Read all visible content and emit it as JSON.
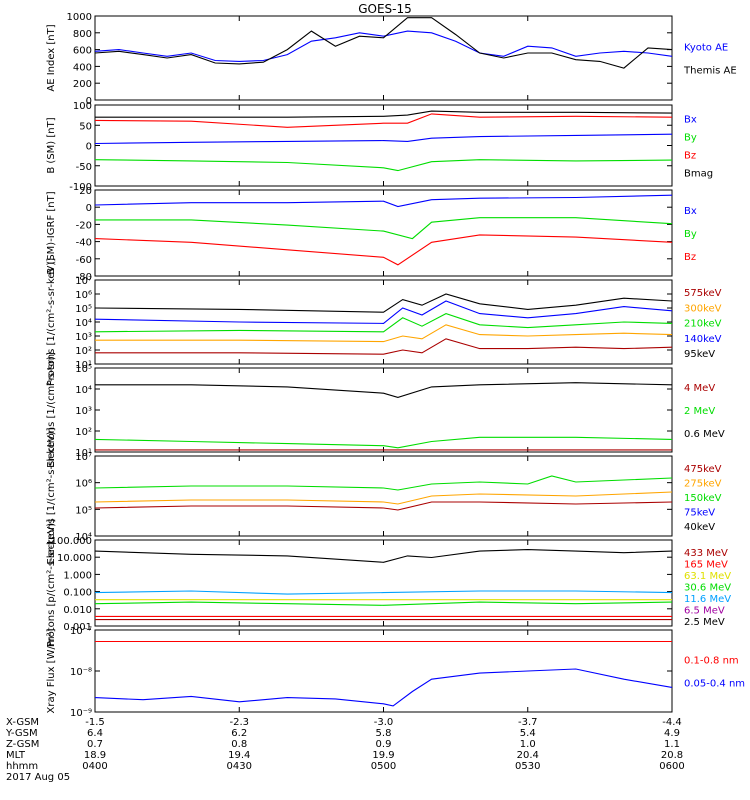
{
  "title": "GOES-15",
  "time_axis": {
    "ticks": [
      "0400",
      "0430",
      "0500",
      "0530",
      "0600"
    ],
    "date": "2017 Aug 05",
    "rows": [
      {
        "label": "X-GSM",
        "values": [
          "-1.5",
          "-2.3",
          "-3.0",
          "-3.7",
          "-4.4"
        ]
      },
      {
        "label": "Y-GSM",
        "values": [
          "6.4",
          "6.2",
          "5.8",
          "5.4",
          "4.9"
        ]
      },
      {
        "label": "Z-GSM",
        "values": [
          "0.7",
          "0.8",
          "0.9",
          "1.0",
          "1.1"
        ]
      },
      {
        "label": "MLT",
        "values": [
          "18.9",
          "19.4",
          "19.9",
          "20.4",
          "20.8"
        ]
      },
      {
        "label": "hhmm",
        "values": [
          "0400",
          "0430",
          "0500",
          "0530",
          "0600"
        ]
      }
    ]
  },
  "colors": {
    "black": "#000000",
    "blue": "#0000ff",
    "red": "#ff0000",
    "green": "#00dd00",
    "orange": "#ffa500",
    "cyan": "#00a0ff",
    "darkred": "#aa0000",
    "purple": "#a000a0",
    "yellow": "#e0e000"
  },
  "chart_data": [
    {
      "type": "line",
      "ylabel": "AE Index [nT]",
      "ylim": [
        0,
        1000
      ],
      "log": false,
      "yticks": [
        "0",
        "200",
        "400",
        "600",
        "800",
        "1000"
      ],
      "legend": [
        {
          "label": "Kyoto AE",
          "color": "blue"
        },
        {
          "label": "Themis AE",
          "color": "black"
        }
      ],
      "series": [
        {
          "name": "Kyoto AE",
          "color": "blue",
          "x": [
            0,
            5,
            10,
            15,
            20,
            25,
            30,
            35,
            40,
            45,
            50,
            55,
            60,
            65,
            70,
            75,
            80,
            85,
            90,
            95,
            100,
            105,
            110,
            115,
            120
          ],
          "y": [
            580,
            600,
            560,
            520,
            560,
            470,
            460,
            470,
            540,
            700,
            740,
            800,
            760,
            820,
            800,
            700,
            560,
            520,
            640,
            620,
            520,
            560,
            580,
            560,
            520
          ]
        },
        {
          "name": "Themis AE",
          "color": "black",
          "x": [
            0,
            5,
            10,
            15,
            20,
            25,
            30,
            35,
            40,
            45,
            50,
            55,
            60,
            65,
            70,
            75,
            80,
            85,
            90,
            95,
            100,
            105,
            110,
            115,
            120
          ],
          "y": [
            560,
            580,
            540,
            500,
            540,
            440,
            430,
            450,
            600,
            820,
            640,
            760,
            740,
            980,
            980,
            780,
            560,
            500,
            560,
            560,
            480,
            460,
            380,
            620,
            600
          ]
        }
      ]
    },
    {
      "type": "line",
      "ylabel": "B (SM) [nT]",
      "ylim": [
        -100,
        100
      ],
      "log": false,
      "yticks": [
        "-100",
        "-50",
        "0",
        "50",
        "100"
      ],
      "legend": [
        {
          "label": "Bx",
          "color": "blue"
        },
        {
          "label": "By",
          "color": "green"
        },
        {
          "label": "Bz",
          "color": "red"
        },
        {
          "label": "Bmag",
          "color": "black"
        }
      ],
      "series": [
        {
          "name": "Bx",
          "color": "blue",
          "x": [
            0,
            20,
            40,
            60,
            65,
            70,
            80,
            100,
            120
          ],
          "y": [
            5,
            8,
            10,
            12,
            10,
            18,
            22,
            25,
            28
          ]
        },
        {
          "name": "By",
          "color": "green",
          "x": [
            0,
            20,
            40,
            60,
            63,
            70,
            80,
            100,
            120
          ],
          "y": [
            -35,
            -38,
            -42,
            -55,
            -62,
            -40,
            -35,
            -38,
            -36
          ]
        },
        {
          "name": "Bz",
          "color": "red",
          "x": [
            0,
            20,
            40,
            60,
            65,
            70,
            80,
            100,
            120
          ],
          "y": [
            62,
            60,
            45,
            55,
            55,
            78,
            70,
            72,
            70
          ]
        },
        {
          "name": "Bmag",
          "color": "black",
          "x": [
            0,
            20,
            40,
            60,
            65,
            70,
            80,
            100,
            120
          ],
          "y": [
            70,
            70,
            70,
            72,
            75,
            85,
            82,
            82,
            80
          ]
        }
      ]
    },
    {
      "type": "line",
      "ylabel": "B (SM)-IGRF [nT]",
      "ylim": [
        -90,
        25
      ],
      "log": false,
      "yticks": [
        "-80",
        "-60",
        "-40",
        "-20",
        "0",
        "20"
      ],
      "legend": [
        {
          "label": "Bx",
          "color": "blue"
        },
        {
          "label": "By",
          "color": "green"
        },
        {
          "label": "Bz",
          "color": "red"
        }
      ],
      "series": [
        {
          "name": "Bx",
          "color": "blue",
          "x": [
            0,
            20,
            40,
            60,
            63,
            70,
            80,
            100,
            120
          ],
          "y": [
            5,
            8,
            8,
            10,
            3,
            12,
            14,
            15,
            18
          ]
        },
        {
          "name": "By",
          "color": "green",
          "x": [
            0,
            20,
            40,
            60,
            66,
            70,
            80,
            100,
            120
          ],
          "y": [
            -15,
            -15,
            -22,
            -30,
            -40,
            -18,
            -12,
            -12,
            -20
          ]
        },
        {
          "name": "Bz",
          "color": "red",
          "x": [
            0,
            20,
            40,
            60,
            63,
            70,
            80,
            100,
            120
          ],
          "y": [
            -40,
            -45,
            -55,
            -65,
            -75,
            -45,
            -35,
            -38,
            -45
          ]
        }
      ]
    },
    {
      "type": "line",
      "ylabel": "Protons [1/(cm²-s-sr-keV)]",
      "ylim": [
        1,
        7
      ],
      "log": true,
      "yticks": [
        "10¹",
        "10²",
        "10³",
        "10⁴",
        "10⁵",
        "10⁶",
        "10⁷"
      ],
      "legend": [
        {
          "label": "575keV",
          "color": "darkred"
        },
        {
          "label": "300keV",
          "color": "orange"
        },
        {
          "label": "210keV",
          "color": "green"
        },
        {
          "label": "140keV",
          "color": "blue"
        },
        {
          "label": "95keV",
          "color": "black"
        }
      ],
      "series": [
        {
          "name": "95keV",
          "color": "black",
          "x": [
            0,
            30,
            60,
            64,
            68,
            73,
            80,
            90,
            100,
            110,
            120
          ],
          "y": [
            5.0,
            4.9,
            4.7,
            5.6,
            5.2,
            6.0,
            5.3,
            4.9,
            5.2,
            5.7,
            5.5
          ]
        },
        {
          "name": "140keV",
          "color": "blue",
          "x": [
            0,
            30,
            60,
            64,
            68,
            73,
            80,
            90,
            100,
            110,
            120
          ],
          "y": [
            4.2,
            4.0,
            3.9,
            5.0,
            4.5,
            5.5,
            4.6,
            4.3,
            4.6,
            5.1,
            4.8
          ]
        },
        {
          "name": "210keV",
          "color": "green",
          "x": [
            0,
            30,
            60,
            64,
            68,
            73,
            80,
            90,
            100,
            110,
            120
          ],
          "y": [
            3.3,
            3.4,
            3.3,
            4.3,
            3.7,
            4.6,
            3.8,
            3.6,
            3.8,
            4.0,
            3.9
          ]
        },
        {
          "name": "300keV",
          "color": "orange",
          "x": [
            0,
            30,
            60,
            64,
            68,
            73,
            80,
            90,
            100,
            110,
            120
          ],
          "y": [
            2.7,
            2.7,
            2.6,
            3.0,
            2.8,
            3.8,
            3.1,
            3.0,
            3.1,
            3.2,
            3.1
          ]
        },
        {
          "name": "575keV",
          "color": "darkred",
          "x": [
            0,
            30,
            60,
            64,
            68,
            73,
            80,
            90,
            100,
            110,
            120
          ],
          "y": [
            1.8,
            1.8,
            1.7,
            2.0,
            1.8,
            2.8,
            2.1,
            2.1,
            2.2,
            2.1,
            2.2
          ]
        }
      ]
    },
    {
      "type": "line",
      "ylabel": "Electrons [1/(cm²-s-sr)]",
      "ylim": [
        1,
        5
      ],
      "log": true,
      "yticks": [
        "10¹",
        "10²",
        "10³",
        "10⁴",
        "10⁵"
      ],
      "legend": [
        {
          "label": "4 MeV",
          "color": "darkred"
        },
        {
          "label": "2 MeV",
          "color": "green"
        },
        {
          "label": "0.6 MeV",
          "color": "black"
        }
      ],
      "series": [
        {
          "name": "0.6 MeV",
          "color": "black",
          "x": [
            0,
            20,
            40,
            60,
            63,
            70,
            80,
            100,
            120
          ],
          "y": [
            4.2,
            4.2,
            4.1,
            3.8,
            3.6,
            4.1,
            4.2,
            4.3,
            4.2
          ]
        },
        {
          "name": "2 MeV",
          "color": "green",
          "x": [
            0,
            20,
            40,
            60,
            63,
            70,
            80,
            100,
            120
          ],
          "y": [
            1.6,
            1.5,
            1.4,
            1.3,
            1.2,
            1.5,
            1.7,
            1.7,
            1.6
          ]
        },
        {
          "name": "4 MeV",
          "color": "darkred",
          "x": [
            0,
            40,
            60,
            80,
            100,
            120
          ],
          "y": [
            1.1,
            1.1,
            1.1,
            1.1,
            1.1,
            1.1
          ]
        }
      ]
    },
    {
      "type": "line",
      "ylabel": "Electrons [1/(cm²-s-sr-keV)]",
      "ylim": [
        3,
        7
      ],
      "log": true,
      "yticks": [
        "10⁴",
        "10⁵",
        "10⁶",
        "10⁷"
      ],
      "legend": [
        {
          "label": "475keV",
          "color": "darkred"
        },
        {
          "label": "275keV",
          "color": "orange"
        },
        {
          "label": "150keV",
          "color": "green"
        },
        {
          "label": "75keV",
          "color": "blue"
        },
        {
          "label": "40keV",
          "color": "black"
        }
      ],
      "series": [
        {
          "name": "150keV",
          "color": "green",
          "x": [
            0,
            20,
            40,
            60,
            63,
            70,
            80,
            90,
            95,
            100,
            110,
            120
          ],
          "y": [
            5.4,
            5.5,
            5.5,
            5.4,
            5.3,
            5.6,
            5.7,
            5.6,
            6.0,
            5.7,
            5.8,
            5.9
          ]
        },
        {
          "name": "275keV",
          "color": "orange",
          "x": [
            0,
            20,
            40,
            60,
            63,
            70,
            80,
            100,
            120
          ],
          "y": [
            4.7,
            4.8,
            4.8,
            4.7,
            4.6,
            5.0,
            5.1,
            5.0,
            5.2
          ]
        },
        {
          "name": "475keV",
          "color": "darkred",
          "x": [
            0,
            20,
            40,
            60,
            63,
            70,
            80,
            100,
            120
          ],
          "y": [
            4.4,
            4.5,
            4.5,
            4.4,
            4.3,
            4.7,
            4.7,
            4.6,
            4.7
          ]
        }
      ]
    },
    {
      "type": "line",
      "ylabel": "Protons [p/(cm²-s-sr-keV)]",
      "ylim": [
        -3.2,
        2.2
      ],
      "log": true,
      "yticks": [
        "0.001",
        "0.010",
        "0.100",
        "1.000",
        "10.000",
        "100.000"
      ],
      "legend": [
        {
          "label": "433 MeV",
          "color": "darkred"
        },
        {
          "label": "165 MeV",
          "color": "red"
        },
        {
          "label": "63.1 MeV",
          "color": "yellow"
        },
        {
          "label": "30.6 MeV",
          "color": "green"
        },
        {
          "label": "11.6 MeV",
          "color": "cyan"
        },
        {
          "label": "6.5 MeV",
          "color": "purple"
        },
        {
          "label": "2.5 MeV",
          "color": "black"
        }
      ],
      "series": [
        {
          "name": "2.5 MeV",
          "color": "black",
          "x": [
            0,
            20,
            40,
            60,
            65,
            70,
            80,
            90,
            100,
            110,
            120
          ],
          "y": [
            1.5,
            1.3,
            1.2,
            0.8,
            1.2,
            1.1,
            1.5,
            1.6,
            1.5,
            1.4,
            1.5
          ]
        },
        {
          "name": "11.6 MeV",
          "color": "cyan",
          "x": [
            0,
            20,
            40,
            60,
            80,
            100,
            120
          ],
          "y": [
            -1.1,
            -1.0,
            -1.2,
            -1.1,
            -1.0,
            -1.0,
            -1.1
          ]
        },
        {
          "name": "30.6 MeV",
          "color": "green",
          "x": [
            0,
            20,
            40,
            60,
            80,
            100,
            120
          ],
          "y": [
            -1.8,
            -1.7,
            -1.8,
            -1.9,
            -1.7,
            -1.8,
            -1.7
          ]
        },
        {
          "name": "63.1 MeV",
          "color": "yellow",
          "x": [
            0,
            20,
            40,
            60,
            80,
            100,
            120
          ],
          "y": [
            -1.55,
            -1.55,
            -1.55,
            -1.55,
            -1.55,
            -1.55,
            -1.55
          ]
        },
        {
          "name": "165 MeV",
          "color": "red",
          "x": [
            0,
            20,
            40,
            60,
            80,
            100,
            120
          ],
          "y": [
            -2.6,
            -2.6,
            -2.6,
            -2.6,
            -2.6,
            -2.6,
            -2.6
          ]
        },
        {
          "name": "433 MeV",
          "color": "darkred",
          "x": [
            0,
            20,
            40,
            60,
            80,
            100,
            120
          ],
          "y": [
            -2.8,
            -2.8,
            -2.8,
            -2.8,
            -2.8,
            -2.8,
            -2.8
          ]
        }
      ]
    },
    {
      "type": "line",
      "ylabel": "Xray Flux [W/m²]",
      "ylim": [
        -9,
        -7
      ],
      "log": true,
      "yticks": [
        "10⁻⁹",
        "10⁻⁸",
        "10⁻⁷"
      ],
      "legend": [
        {
          "label": "0.1-0.8 nm",
          "color": "red"
        },
        {
          "label": "0.05-0.4 nm",
          "color": "blue"
        }
      ],
      "series": [
        {
          "name": "0.1-0.8 nm",
          "color": "red",
          "x": [
            0,
            20,
            40,
            60,
            80,
            100,
            120
          ],
          "y": [
            -7.28,
            -7.28,
            -7.28,
            -7.28,
            -7.28,
            -7.28,
            -7.28
          ]
        },
        {
          "name": "0.05-0.4 nm",
          "color": "blue",
          "x": [
            0,
            10,
            20,
            30,
            40,
            50,
            60,
            62,
            66,
            70,
            80,
            90,
            100,
            110,
            120
          ],
          "y": [
            -8.65,
            -8.7,
            -8.62,
            -8.75,
            -8.65,
            -8.68,
            -8.8,
            -8.85,
            -8.5,
            -8.2,
            -8.05,
            -8.0,
            -7.95,
            -8.2,
            -8.4
          ]
        }
      ]
    }
  ]
}
